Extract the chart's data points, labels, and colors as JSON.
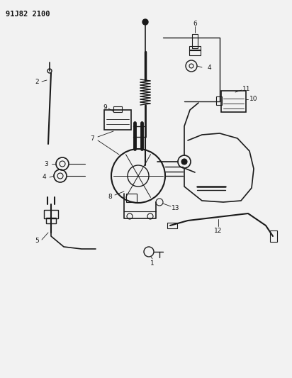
{
  "title_text": "91J82 2100",
  "bg_color": "#f2f2f2",
  "line_color": "#1a1a1a",
  "fig_width": 4.12,
  "fig_height": 5.33,
  "dpi": 100
}
